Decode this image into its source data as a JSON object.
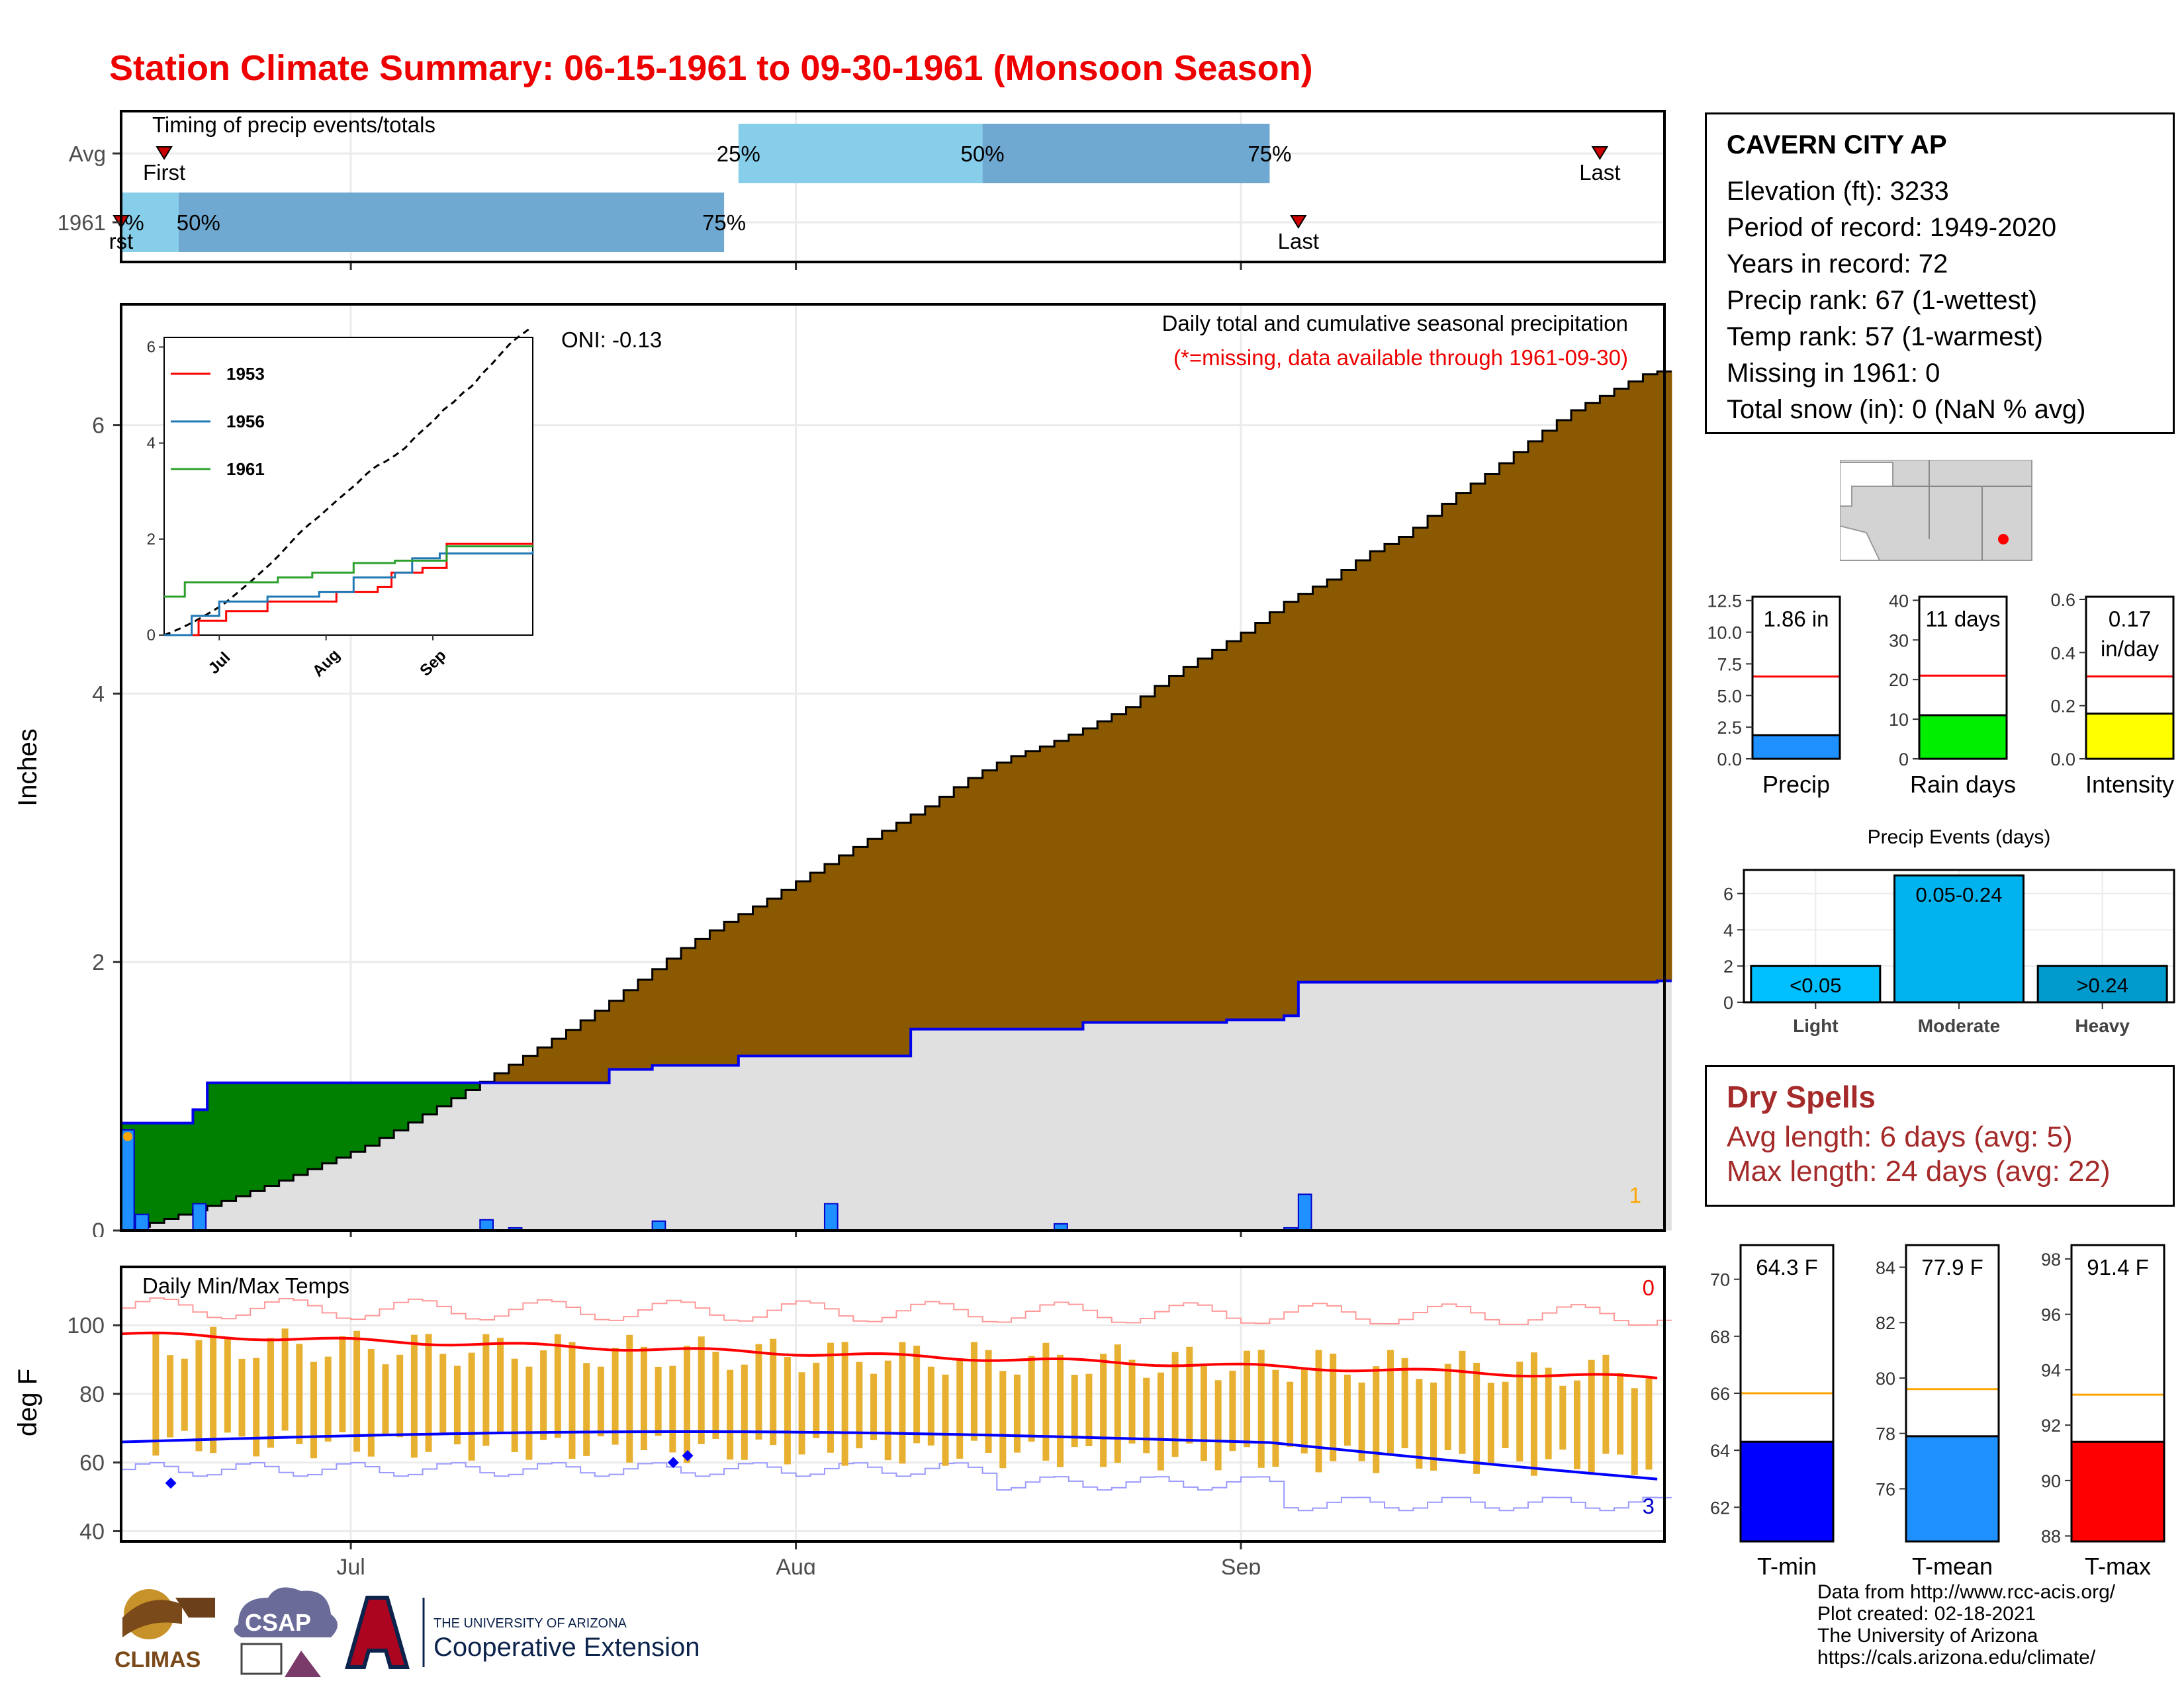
{
  "title": "Station Climate Summary: 06-15-1961 to 09-30-1961 (Monsoon Season)",
  "colors": {
    "title": "#ee0000",
    "surplus": "#8b5a00",
    "deficit": "#008000",
    "avg_fill": "#e0e0e0",
    "precip_bar": "#1e90ff",
    "tmax_line": "#ff0000",
    "tmin_line": "#0000ff",
    "temp_bar": "#e8b030",
    "dry_spell": "#a52a2a"
  },
  "station": {
    "name": "CAVERN CITY AP",
    "lines": [
      "Elevation (ft): 3233",
      "Period of record: 1949-2020",
      "Years in record: 72",
      "Precip rank: 67 (1-wettest)",
      "Temp rank: 57 (1-warmest)",
      "Missing in 1961: 0",
      "Total snow (in): 0 (NaN % avg)"
    ]
  },
  "dry_spells": {
    "title": "Dry Spells",
    "avg": "Avg length: 6 days (avg: 5)",
    "max": "Max length: 24 days (avg: 22)"
  },
  "credits": [
    "Data from http://www.rcc-acis.org/",
    "Plot created: 02-18-2021",
    "The University of Arizona",
    "https://cals.arizona.edu/climate/"
  ],
  "logos": {
    "climas": "CLIMAS",
    "csap": "CSAP",
    "ua_small": "THE UNIVERSITY OF ARIZONA",
    "ua_big": "Cooperative Extension"
  },
  "chart_data": [
    {
      "id": "timing",
      "type": "bar",
      "title": "Timing of precip events/totals",
      "rows": [
        "Avg",
        "1961"
      ],
      "avg": {
        "first": "1961-06-18",
        "p25": "1961-07-28",
        "p50": "1961-08-14",
        "p75": "1961-09-03",
        "last": "1961-09-26"
      },
      "y1961": {
        "first": "1961-06-15",
        "p25": "1961-06-15",
        "p50": "1961-06-19",
        "p75": "1961-07-27",
        "last": "1961-09-05"
      },
      "labels": {
        "first": "First",
        "last": "Last",
        "p25": "25%",
        "p50": "50%",
        "p75": "75%",
        "p25_1961": "%",
        "first_1961": "rst"
      }
    },
    {
      "id": "main",
      "type": "area",
      "title": "Daily total and cumulative seasonal precipitation",
      "subtitle": "(*=missing, data available through 1961-09-30)",
      "oni": "ONI: -0.13",
      "ylabel": "Inches",
      "ylim": [
        0,
        6.9
      ],
      "yticks": [
        0,
        2,
        4,
        6
      ],
      "xticks": [
        "Jul",
        "Aug",
        "Sep"
      ],
      "xtick_dates": [
        "1961-07-01",
        "1961-08-01",
        "1961-09-01"
      ],
      "xlim": [
        "1961-06-15",
        "1961-09-30"
      ],
      "corner_label": "1",
      "avg_cumulative": [
        [
          0,
          0
        ],
        [
          7,
          0.08
        ],
        [
          14,
          0.17
        ],
        [
          21,
          0.27
        ],
        [
          28,
          0.38
        ],
        [
          35,
          0.5
        ],
        [
          42,
          0.62
        ],
        [
          49,
          0.78
        ],
        [
          56,
          0.95
        ],
        [
          63,
          1.12
        ],
        [
          70,
          1.3
        ],
        [
          77,
          1.48
        ],
        [
          84,
          1.68
        ],
        [
          91,
          1.9
        ],
        [
          98,
          2.12
        ],
        [
          105,
          2.3
        ],
        [
          112,
          2.46
        ],
        [
          119,
          2.64
        ],
        [
          126,
          2.82
        ],
        [
          133,
          2.99
        ],
        [
          140,
          3.16
        ],
        [
          147,
          3.36
        ],
        [
          154,
          3.52
        ],
        [
          161,
          3.62
        ],
        [
          168,
          3.75
        ],
        [
          175,
          3.9
        ],
        [
          182,
          4.12
        ],
        [
          189,
          4.3
        ],
        [
          196,
          4.48
        ],
        [
          203,
          4.7
        ],
        [
          210,
          4.85
        ],
        [
          217,
          5.05
        ],
        [
          224,
          5.2
        ],
        [
          231,
          5.45
        ],
        [
          238,
          5.65
        ],
        [
          245,
          5.88
        ],
        [
          252,
          6.1
        ],
        [
          259,
          6.25
        ],
        [
          266,
          6.4
        ]
      ],
      "cum_1961": [
        [
          0,
          0.8
        ],
        [
          4,
          0.8
        ],
        [
          5,
          0.9
        ],
        [
          6,
          0.9
        ],
        [
          6,
          1.1
        ],
        [
          33,
          1.1
        ],
        [
          34,
          1.2
        ],
        [
          37,
          1.23
        ],
        [
          42,
          1.23
        ],
        [
          43,
          1.3
        ],
        [
          54,
          1.3
        ],
        [
          55,
          1.5
        ],
        [
          66,
          1.5
        ],
        [
          67,
          1.55
        ],
        [
          77,
          1.57
        ],
        [
          81,
          1.6
        ],
        [
          82,
          1.85
        ],
        [
          107,
          1.86
        ]
      ],
      "daily_1961": [
        [
          0,
          0.75
        ],
        [
          1,
          0.12
        ],
        [
          5,
          0.2
        ],
        [
          25,
          0.08
        ],
        [
          27,
          0.02
        ],
        [
          37,
          0.07
        ],
        [
          49,
          0.2
        ],
        [
          65,
          0.05
        ],
        [
          81,
          0.02
        ],
        [
          82,
          0.27
        ]
      ],
      "inset": {
        "yticks": [
          0,
          2,
          4,
          6
        ],
        "ylim": [
          0,
          6.2
        ],
        "xticks": [
          "Jul",
          "Aug",
          "Sep"
        ],
        "series": [
          {
            "name": "1953",
            "color": "#ff0000"
          },
          {
            "name": "1956",
            "color": "#1f77b4"
          },
          {
            "name": "1961",
            "color": "#2ca02c"
          }
        ]
      }
    },
    {
      "id": "temps",
      "type": "line",
      "title": "Daily Min/Max Temps",
      "ylabel": "deg F",
      "ylim": [
        37,
        117
      ],
      "yticks": [
        40,
        60,
        80,
        100
      ],
      "xticks": [
        "Jul",
        "Aug",
        "Sep"
      ],
      "label_top": "0",
      "label_bottom": "3"
    },
    {
      "id": "summary_bars",
      "type": "bar",
      "panels": [
        {
          "label": "Precip",
          "value": 1.86,
          "avg": 6.5,
          "value_text": "1.86 in",
          "ylim": [
            0,
            12.8
          ],
          "yticks": [
            "0.0",
            "2.5",
            "5.0",
            "7.5",
            "10.0",
            "12.5"
          ],
          "tick_values": [
            0,
            2.5,
            5,
            7.5,
            10,
            12.5
          ],
          "color": "#1e90ff"
        },
        {
          "label": "Rain days",
          "value": 11,
          "avg": 21,
          "value_text": "11 days",
          "ylim": [
            0,
            40.9
          ],
          "yticks": [
            "0",
            "10",
            "20",
            "30",
            "40"
          ],
          "tick_values": [
            0,
            10,
            20,
            30,
            40
          ],
          "color": "#00ee00"
        },
        {
          "label": "Intensity",
          "value": 0.17,
          "avg": 0.31,
          "value_text": "0.17",
          "value_text2": "in/day",
          "ylim": [
            0,
            0.61
          ],
          "yticks": [
            "0.0",
            "0.2",
            "0.4",
            "0.6"
          ],
          "tick_values": [
            0,
            0.2,
            0.4,
            0.6
          ],
          "color": "#ffff00"
        }
      ]
    },
    {
      "id": "events",
      "type": "bar",
      "title": "Precip Events (days)",
      "categories": [
        "Light",
        "Moderate",
        "Heavy"
      ],
      "values": [
        2,
        7,
        2
      ],
      "bar_labels": [
        "<0.05",
        "0.05-0.24",
        ">0.24"
      ],
      "colors": [
        "#00bfff",
        "#00b2ee",
        "#009acd"
      ],
      "ylim": [
        0,
        7.3
      ],
      "yticks": [
        0,
        2,
        4,
        6
      ]
    },
    {
      "id": "temp_bars",
      "type": "bar",
      "panels": [
        {
          "label": "T-min",
          "value": 64.3,
          "avg": 66,
          "value_text": "64.3 F",
          "ylim": [
            60.8,
            71.2
          ],
          "yticks": [
            62,
            64,
            66,
            68,
            70
          ],
          "color": "#0000ff"
        },
        {
          "label": "T-mean",
          "value": 77.9,
          "avg": 79.6,
          "value_text": "77.9 F",
          "ylim": [
            74.1,
            84.8
          ],
          "yticks": [
            76,
            78,
            80,
            82,
            84
          ],
          "color": "#1e90ff"
        },
        {
          "label": "T-max",
          "value": 91.4,
          "avg": 93.1,
          "value_text": "91.4 F",
          "ylim": [
            87.8,
            98.5
          ],
          "yticks": [
            88,
            90,
            92,
            94,
            96,
            98
          ],
          "color": "#ff0000"
        }
      ]
    }
  ]
}
